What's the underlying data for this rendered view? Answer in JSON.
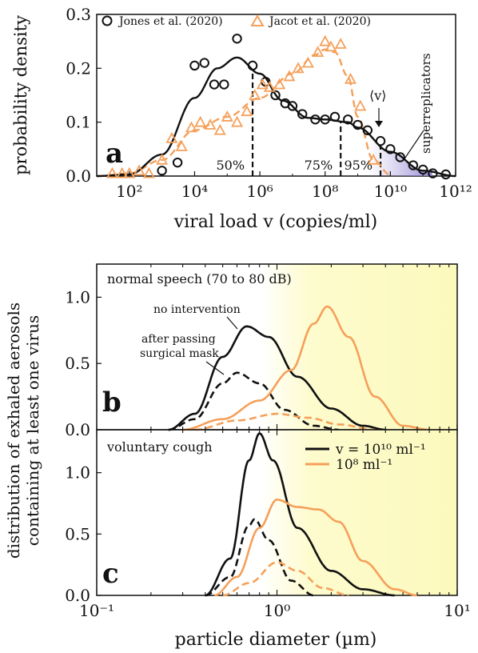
{
  "chart_data": [
    {
      "panel": "a",
      "type": "scatter",
      "xscale": "log",
      "xlim": [
        10,
        1000000000000
      ],
      "ylim": [
        0,
        0.3
      ],
      "xticks": [
        "10²",
        "10⁴",
        "10⁶",
        "10⁸",
        "10¹⁰",
        "10¹²"
      ],
      "yticks": [
        "0.0",
        "0.1",
        "0.2",
        "0.3"
      ],
      "xlabel": "viral load v (copies/ml)",
      "ylabel": "probability density",
      "panel_label": "a",
      "legend": [
        {
          "name": "Jones et al. (2020)",
          "marker": "circle",
          "color": "#111111"
        },
        {
          "name": "Jacot et al. (2020)",
          "marker": "triangle",
          "color": "#f5a05a"
        }
      ],
      "series": [
        {
          "name": "Jones et al. (2020)",
          "kind": "points",
          "color": "#111111",
          "x": [
            1000,
            3000,
            10000,
            20000,
            40000,
            80000,
            200000,
            600000,
            1500000,
            3000000,
            6000000,
            10000000,
            20000000,
            50000000,
            100000000,
            200000000,
            500000000,
            1000000000,
            2000000000,
            5000000000,
            10000000000,
            20000000000,
            50000000000,
            100000000000,
            200000000000,
            500000000000
          ],
          "y": [
            0.01,
            0.025,
            0.205,
            0.21,
            0.17,
            0.17,
            0.255,
            0.205,
            0.175,
            0.15,
            0.135,
            0.13,
            0.115,
            0.105,
            0.105,
            0.11,
            0.105,
            0.095,
            0.085,
            0.065,
            0.05,
            0.035,
            0.02,
            0.012,
            0.005,
            0.003
          ]
        },
        {
          "name": "Jones fit",
          "kind": "line",
          "color": "#111111",
          "dash": false,
          "x": [
            10,
            100,
            1000,
            10000,
            50000,
            200000,
            1000000,
            5000000,
            30000000,
            100000000,
            500000000,
            1000000000,
            10000000000,
            100000000000,
            1000000000000
          ],
          "y": [
            0.0,
            0.003,
            0.04,
            0.145,
            0.2,
            0.22,
            0.19,
            0.14,
            0.108,
            0.105,
            0.1,
            0.09,
            0.045,
            0.01,
            0.0
          ]
        },
        {
          "name": "Jacot et al. (2020)",
          "kind": "points",
          "color": "#f5a05a",
          "marker": "triangle",
          "x": [
            30,
            60,
            100,
            200,
            400,
            1000,
            2000,
            4000,
            8000,
            15000,
            30000,
            60000,
            100000,
            200000,
            400000,
            700000,
            1200000,
            2000000,
            4000000,
            8000000,
            15000000,
            30000000,
            60000000,
            100000000,
            150000000,
            300000000,
            600000000,
            1200000000,
            3000000000
          ],
          "y": [
            0.005,
            0.005,
            0.005,
            0.01,
            0.005,
            0.03,
            0.07,
            0.055,
            0.09,
            0.1,
            0.095,
            0.085,
            0.11,
            0.1,
            0.12,
            0.15,
            0.17,
            0.165,
            0.17,
            0.185,
            0.2,
            0.21,
            0.23,
            0.25,
            0.24,
            0.245,
            0.18,
            0.13,
            0.03
          ]
        },
        {
          "name": "Jacot fit",
          "kind": "line",
          "color": "#f5a05a",
          "dash": true,
          "x": [
            10,
            100,
            1000,
            10000,
            100000,
            1000000,
            10000000,
            50000000,
            100000000,
            200000000,
            500000000,
            1000000000,
            3000000000,
            10000000000
          ],
          "y": [
            0.0,
            0.005,
            0.03,
            0.085,
            0.11,
            0.145,
            0.19,
            0.225,
            0.235,
            0.23,
            0.185,
            0.11,
            0.03,
            0.002
          ]
        }
      ],
      "percentiles": [
        {
          "label": "50%",
          "x": 600000
        },
        {
          "label": "75%",
          "x": 300000000
        },
        {
          "label": "95%",
          "x": 5000000000
        }
      ],
      "annotations": {
        "mean": "⟨v⟩",
        "tail": "superreplicators"
      }
    },
    {
      "panel": "b",
      "type": "line",
      "xscale": "log",
      "xlim": [
        0.1,
        10
      ],
      "ylim": [
        0,
        1.25
      ],
      "yticks": [
        "0.0",
        "0.5",
        "1.0"
      ],
      "title": "normal speech (70 to 80 dB)",
      "panel_label": "b",
      "annotations": [
        "no intervention",
        "after passing",
        "surgical mask"
      ],
      "series": [
        {
          "name": "v = 10¹⁰ ml⁻¹",
          "color": "#111111",
          "dash": false,
          "peak_x": 0.68,
          "peak_y": 0.78,
          "curve": [
            [
              0.25,
              0.0
            ],
            [
              0.35,
              0.12
            ],
            [
              0.5,
              0.55
            ],
            [
              0.68,
              0.78
            ],
            [
              0.9,
              0.7
            ],
            [
              1.3,
              0.4
            ],
            [
              2,
              0.16
            ],
            [
              3,
              0.03
            ],
            [
              4,
              0.0
            ]
          ]
        },
        {
          "name": "10¹⁰ mask",
          "color": "#111111",
          "dash": true,
          "peak_x": 0.6,
          "peak_y": 0.43,
          "curve": [
            [
              0.25,
              0.0
            ],
            [
              0.35,
              0.08
            ],
            [
              0.5,
              0.35
            ],
            [
              0.6,
              0.43
            ],
            [
              0.8,
              0.35
            ],
            [
              1.1,
              0.15
            ],
            [
              1.6,
              0.03
            ],
            [
              2.2,
              0.0
            ]
          ]
        },
        {
          "name": "10⁸ ml⁻¹",
          "color": "#f5a05a",
          "dash": false,
          "peak_x": 1.9,
          "peak_y": 0.93,
          "curve": [
            [
              0.3,
              0.0
            ],
            [
              0.5,
              0.08
            ],
            [
              0.8,
              0.22
            ],
            [
              1.2,
              0.45
            ],
            [
              1.6,
              0.8
            ],
            [
              1.9,
              0.93
            ],
            [
              2.5,
              0.7
            ],
            [
              3.5,
              0.25
            ],
            [
              5,
              0.03
            ],
            [
              7,
              0.0
            ]
          ]
        },
        {
          "name": "10⁸ mask",
          "color": "#f5a05a",
          "dash": true,
          "peak_x": 1.0,
          "peak_y": 0.12,
          "curve": [
            [
              0.35,
              0.0
            ],
            [
              0.6,
              0.07
            ],
            [
              1.0,
              0.12
            ],
            [
              1.5,
              0.09
            ],
            [
              2.2,
              0.04
            ],
            [
              3.5,
              0.0
            ]
          ]
        }
      ]
    },
    {
      "panel": "c",
      "type": "line",
      "xscale": "log",
      "xlim": [
        0.1,
        10
      ],
      "ylim": [
        0,
        1.35
      ],
      "xticks": [
        "10⁻¹",
        "10⁰",
        "10¹"
      ],
      "yticks": [
        "0.0",
        "0.5",
        "1.0"
      ],
      "title": "voluntary cough",
      "xlabel": "particle diameter (µm)",
      "panel_label": "c",
      "legend": [
        {
          "name": "v = 10¹⁰ ml⁻¹",
          "color": "#111111"
        },
        {
          "name": "10⁸ ml⁻¹",
          "color": "#f5a05a"
        }
      ],
      "series": [
        {
          "name": "v = 10¹⁰ ml⁻¹",
          "color": "#111111",
          "dash": false,
          "peak_x": 0.8,
          "peak_y": 1.32,
          "curve": [
            [
              0.4,
              0.0
            ],
            [
              0.55,
              0.3
            ],
            [
              0.7,
              1.1
            ],
            [
              0.8,
              1.32
            ],
            [
              0.95,
              1.1
            ],
            [
              1.3,
              0.55
            ],
            [
              2,
              0.2
            ],
            [
              3,
              0.05
            ],
            [
              4.5,
              0.0
            ]
          ]
        },
        {
          "name": "10¹⁰ mask",
          "color": "#111111",
          "dash": true,
          "peak_x": 0.75,
          "peak_y": 0.62,
          "curve": [
            [
              0.4,
              0.0
            ],
            [
              0.55,
              0.15
            ],
            [
              0.7,
              0.57
            ],
            [
              0.75,
              0.62
            ],
            [
              0.9,
              0.45
            ],
            [
              1.2,
              0.12
            ],
            [
              1.6,
              0.0
            ]
          ]
        },
        {
          "name": "10⁸ ml⁻¹",
          "color": "#f5a05a",
          "dash": false,
          "peak_x": 1.0,
          "peak_y": 0.78,
          "curve": [
            [
              0.45,
              0.0
            ],
            [
              0.6,
              0.15
            ],
            [
              0.8,
              0.55
            ],
            [
              1.0,
              0.78
            ],
            [
              1.3,
              0.72
            ],
            [
              1.7,
              0.7
            ],
            [
              2.2,
              0.6
            ],
            [
              3,
              0.28
            ],
            [
              4.5,
              0.05
            ],
            [
              6,
              0.0
            ]
          ]
        },
        {
          "name": "10⁸ mask",
          "color": "#f5a05a",
          "dash": true,
          "peak_x": 1.0,
          "peak_y": 0.27,
          "curve": [
            [
              0.5,
              0.0
            ],
            [
              0.7,
              0.1
            ],
            [
              1.0,
              0.27
            ],
            [
              1.3,
              0.2
            ],
            [
              1.8,
              0.06
            ],
            [
              2.5,
              0.0
            ]
          ]
        }
      ]
    }
  ],
  "shared": {
    "ylabel_bc_line1": "distribution of exhaled aerosols",
    "ylabel_bc_line2": "containing at least one virus"
  }
}
